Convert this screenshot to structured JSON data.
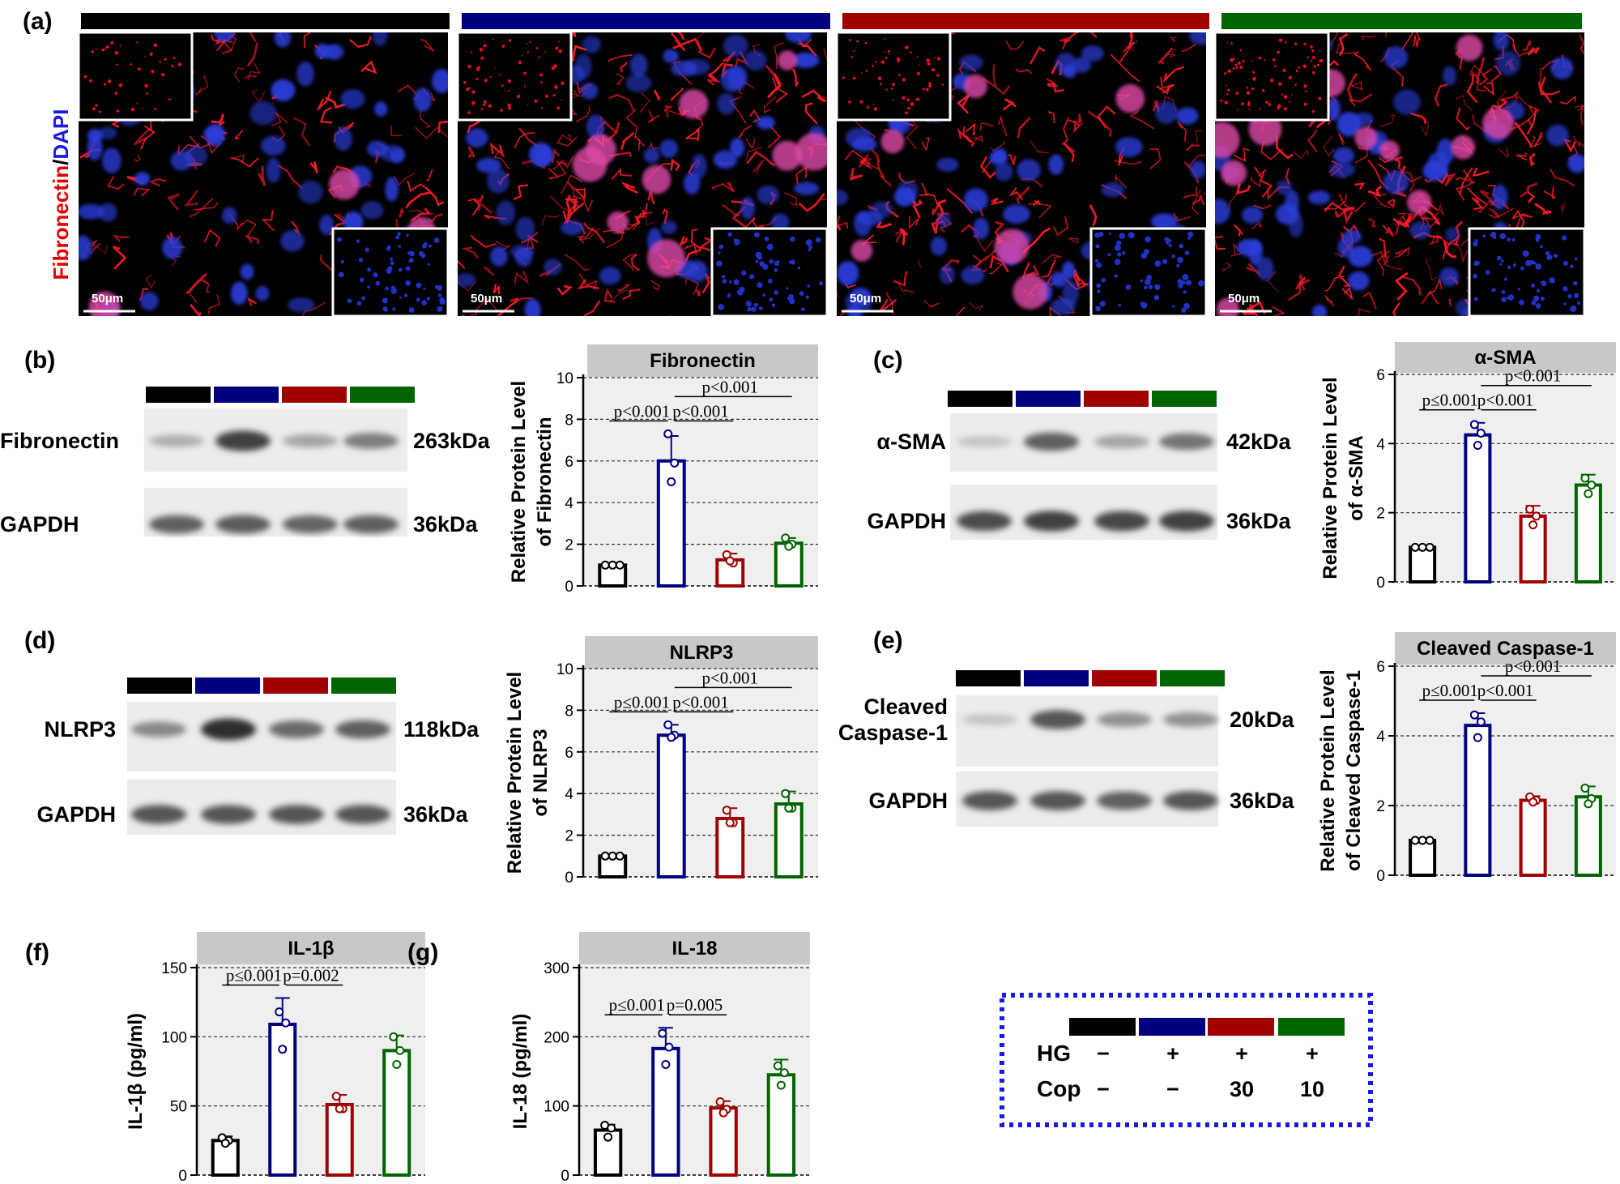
{
  "legend": {
    "colors": [
      "#000000",
      "#000080",
      "#A00000",
      "#006400"
    ],
    "rows": [
      {
        "label": "HG",
        "values": [
          "−",
          "+",
          "+",
          "+"
        ]
      },
      {
        "label": "Cop",
        "values": [
          "−",
          "−",
          "30",
          "10"
        ]
      }
    ]
  },
  "panel_a": {
    "letter": "(a)",
    "ylabel_red": "Fibronectin",
    "ylabel_sep": "/",
    "ylabel_blue": "DAPI",
    "scale_bar": "50μm",
    "images": [
      {
        "intensity": 0.25
      },
      {
        "intensity": 0.55
      },
      {
        "intensity": 0.45
      },
      {
        "intensity": 0.75
      }
    ]
  },
  "blots": [
    {
      "letter": "(b)",
      "bands": [
        {
          "label": "Fibronectin",
          "kda": "263kDa",
          "intensities": [
            0.3,
            0.85,
            0.35,
            0.55
          ]
        },
        {
          "label": "GAPDH",
          "kda": "36kDa",
          "intensities": [
            0.7,
            0.72,
            0.68,
            0.7
          ]
        }
      ]
    },
    {
      "letter": "(c)",
      "bands": [
        {
          "label": "α-SMA",
          "kda": "42kDa",
          "intensities": [
            0.2,
            0.7,
            0.35,
            0.6
          ]
        },
        {
          "label": "GAPDH",
          "kda": "36kDa",
          "intensities": [
            0.8,
            0.85,
            0.82,
            0.85
          ]
        }
      ]
    },
    {
      "letter": "(d)",
      "bands": [
        {
          "label": "NLRP3",
          "kda": "118kDa",
          "intensities": [
            0.5,
            0.95,
            0.65,
            0.7
          ]
        },
        {
          "label": "GAPDH",
          "kda": "36kDa",
          "intensities": [
            0.75,
            0.75,
            0.75,
            0.75
          ]
        }
      ]
    },
    {
      "letter": "(e)",
      "bands": [
        {
          "label": "Cleaved\nCaspase-1",
          "kda": "20kDa",
          "intensities": [
            0.2,
            0.75,
            0.45,
            0.45
          ]
        },
        {
          "label": "GAPDH",
          "kda": "36kDa",
          "intensities": [
            0.75,
            0.75,
            0.7,
            0.75
          ]
        }
      ]
    }
  ],
  "chart_data": [
    {
      "type": "bar",
      "title": "Fibronectin",
      "ylabel": "Relative Protein Level\nof Fibronectin",
      "ylim": [
        0,
        10
      ],
      "yticks": [
        0,
        2,
        4,
        6,
        8,
        10
      ],
      "grid": true,
      "values": [
        1.0,
        6.0,
        1.25,
        2.05
      ],
      "errors": [
        0,
        1.2,
        0.3,
        0.25
      ],
      "points": [
        [
          1,
          1,
          1
        ],
        [
          7.3,
          5.9,
          5.0
        ],
        [
          1.5,
          1.1,
          1.2
        ],
        [
          2.3,
          2.0,
          1.9
        ]
      ],
      "pvalues": [
        {
          "text": "p<0.001",
          "from": 0,
          "to": 1,
          "level": 0
        },
        {
          "text": "p<0.001",
          "from": 1,
          "to": 2,
          "level": 0
        },
        {
          "text": "p<0.001",
          "from": 1,
          "to": 3,
          "level": 1
        }
      ]
    },
    {
      "type": "bar",
      "title": "α-SMA",
      "ylabel": "Relative Protein Level\nof α-SMA",
      "ylim": [
        0,
        6
      ],
      "yticks": [
        0,
        2,
        4,
        6
      ],
      "grid": true,
      "values": [
        1.0,
        4.25,
        1.9,
        2.8
      ],
      "errors": [
        0,
        0.35,
        0.3,
        0.3
      ],
      "points": [
        [
          1,
          1,
          1
        ],
        [
          4.55,
          4.3,
          3.95
        ],
        [
          2.1,
          1.9,
          1.65
        ],
        [
          3.0,
          2.8,
          2.55
        ]
      ],
      "pvalues": [
        {
          "text": "p≤0.001",
          "from": 0,
          "to": 1,
          "level": 0
        },
        {
          "text": "p<0.001",
          "from": 1,
          "to": 2,
          "level": 0
        },
        {
          "text": "p<0.001",
          "from": 1,
          "to": 3,
          "level": 1
        }
      ]
    },
    {
      "type": "bar",
      "title": "NLRP3",
      "ylabel": "Relative Protein Level\nof NLRP3",
      "ylim": [
        0,
        10
      ],
      "yticks": [
        0,
        2,
        4,
        6,
        8,
        10
      ],
      "grid": true,
      "values": [
        1.0,
        6.8,
        2.8,
        3.5
      ],
      "errors": [
        0,
        0.5,
        0.5,
        0.6
      ],
      "points": [
        [
          1,
          1,
          1
        ],
        [
          7.3,
          6.8,
          6.7
        ],
        [
          3.2,
          2.6,
          2.6
        ],
        [
          4.0,
          3.3,
          3.3
        ]
      ],
      "pvalues": [
        {
          "text": "p≤0.001",
          "from": 0,
          "to": 1,
          "level": 0
        },
        {
          "text": "p<0.001",
          "from": 1,
          "to": 2,
          "level": 0
        },
        {
          "text": "p<0.001",
          "from": 1,
          "to": 3,
          "level": 1
        }
      ]
    },
    {
      "type": "bar",
      "title": "Cleaved Caspase-1",
      "ylabel": "Relative Protein Level\nof Cleaved Caspase-1",
      "ylim": [
        0,
        6
      ],
      "yticks": [
        0,
        2,
        4,
        6
      ],
      "grid": true,
      "values": [
        1.0,
        4.3,
        2.15,
        2.25
      ],
      "errors": [
        0,
        0.35,
        0.12,
        0.3
      ],
      "points": [
        [
          1,
          1,
          1
        ],
        [
          4.6,
          4.4,
          3.95
        ],
        [
          2.25,
          2.15,
          2.1
        ],
        [
          2.5,
          2.2,
          2.05
        ]
      ],
      "pvalues": [
        {
          "text": "p≤0.001",
          "from": 0,
          "to": 1,
          "level": 0
        },
        {
          "text": "p<0.001",
          "from": 1,
          "to": 2,
          "level": 0
        },
        {
          "text": "p<0.001",
          "from": 1,
          "to": 3,
          "level": 1
        }
      ]
    },
    {
      "type": "bar",
      "letter": "(f)",
      "title": "IL-1β",
      "ylabel": "IL-1β (pg/ml)",
      "ylim": [
        0,
        150
      ],
      "yticks": [
        0,
        50,
        100,
        150
      ],
      "grid": true,
      "values": [
        25,
        109,
        51,
        90
      ],
      "errors": [
        3,
        19,
        7,
        11
      ],
      "points": [
        [
          27,
          25,
          23
        ],
        [
          118,
          110,
          91
        ],
        [
          57,
          48,
          48
        ],
        [
          100,
          90,
          80
        ]
      ],
      "pvalues": [
        {
          "text": "p≤0.001",
          "from": 0,
          "to": 1,
          "level": 0
        },
        {
          "text": "p=0.002",
          "from": 1,
          "to": 2,
          "level": 0
        }
      ]
    },
    {
      "type": "bar",
      "letter": "(g)",
      "title": "IL-18",
      "ylabel": "IL-18 (pg/ml)",
      "ylim": [
        0,
        300
      ],
      "yticks": [
        0,
        100,
        200,
        300
      ],
      "grid": true,
      "values": [
        65,
        183,
        97,
        145
      ],
      "errors": [
        8,
        30,
        10,
        22
      ],
      "points": [
        [
          72,
          68,
          55
        ],
        [
          205,
          185,
          160
        ],
        [
          106,
          95,
          90
        ],
        [
          158,
          148,
          130
        ]
      ],
      "pvalues": [
        {
          "text": "p≤0.001",
          "from": 0,
          "to": 1,
          "level": 0
        },
        {
          "text": "p=0.005",
          "from": 1,
          "to": 2,
          "level": 0
        }
      ]
    }
  ]
}
